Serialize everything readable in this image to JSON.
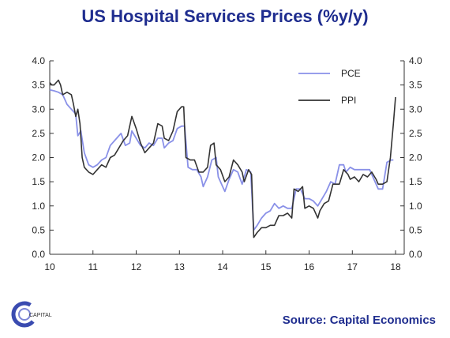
{
  "title": "US Hospital Services Prices (%y/y)",
  "source": "Source: Capital Economics",
  "logo": {
    "text": "CAPITAL"
  },
  "colors": {
    "title": "#1f2d8f",
    "pce": "#8a91e8",
    "ppi": "#333333"
  },
  "chart_data": {
    "type": "line",
    "title": "US Hospital Services Prices (%y/y)",
    "xlim": [
      10,
      18.2
    ],
    "ylim": [
      0,
      4
    ],
    "grid": false,
    "legend_placement": "top-right",
    "x_ticks": [
      "10",
      "11",
      "12",
      "13",
      "14",
      "15",
      "16",
      "17",
      "18"
    ],
    "y_ticks": [
      "0.0",
      "0.5",
      "1.0",
      "1.5",
      "2.0",
      "2.5",
      "3.0",
      "3.5",
      "4.0"
    ],
    "series": [
      {
        "name": "PCE",
        "points": [
          [
            10.0,
            3.4
          ],
          [
            10.1,
            3.38
          ],
          [
            10.2,
            3.35
          ],
          [
            10.3,
            3.3
          ],
          [
            10.4,
            3.1
          ],
          [
            10.5,
            3.0
          ],
          [
            10.6,
            2.9
          ],
          [
            10.65,
            2.45
          ],
          [
            10.72,
            2.55
          ],
          [
            10.8,
            2.1
          ],
          [
            10.9,
            1.85
          ],
          [
            11.0,
            1.8
          ],
          [
            11.1,
            1.85
          ],
          [
            11.2,
            1.95
          ],
          [
            11.3,
            2.0
          ],
          [
            11.4,
            2.25
          ],
          [
            11.5,
            2.35
          ],
          [
            11.6,
            2.45
          ],
          [
            11.65,
            2.5
          ],
          [
            11.75,
            2.25
          ],
          [
            11.85,
            2.3
          ],
          [
            11.9,
            2.55
          ],
          [
            12.0,
            2.4
          ],
          [
            12.1,
            2.25
          ],
          [
            12.2,
            2.2
          ],
          [
            12.3,
            2.3
          ],
          [
            12.4,
            2.25
          ],
          [
            12.5,
            2.4
          ],
          [
            12.6,
            2.4
          ],
          [
            12.65,
            2.2
          ],
          [
            12.75,
            2.3
          ],
          [
            12.85,
            2.35
          ],
          [
            12.95,
            2.6
          ],
          [
            13.05,
            2.65
          ],
          [
            13.12,
            2.65
          ],
          [
            13.2,
            1.8
          ],
          [
            13.3,
            1.75
          ],
          [
            13.4,
            1.75
          ],
          [
            13.5,
            1.6
          ],
          [
            13.55,
            1.4
          ],
          [
            13.65,
            1.6
          ],
          [
            13.75,
            1.95
          ],
          [
            13.85,
            2.0
          ],
          [
            13.9,
            1.6
          ],
          [
            14.0,
            1.4
          ],
          [
            14.05,
            1.3
          ],
          [
            14.15,
            1.55
          ],
          [
            14.25,
            1.75
          ],
          [
            14.35,
            1.7
          ],
          [
            14.45,
            1.45
          ],
          [
            14.55,
            1.75
          ],
          [
            14.65,
            1.7
          ],
          [
            14.72,
            0.5
          ],
          [
            14.8,
            0.6
          ],
          [
            14.9,
            0.75
          ],
          [
            15.0,
            0.85
          ],
          [
            15.1,
            0.9
          ],
          [
            15.2,
            1.05
          ],
          [
            15.3,
            0.95
          ],
          [
            15.4,
            1.0
          ],
          [
            15.5,
            0.95
          ],
          [
            15.6,
            0.95
          ],
          [
            15.7,
            1.35
          ],
          [
            15.8,
            1.35
          ],
          [
            15.9,
            1.15
          ],
          [
            16.0,
            1.15
          ],
          [
            16.1,
            1.1
          ],
          [
            16.2,
            1.0
          ],
          [
            16.3,
            1.15
          ],
          [
            16.4,
            1.3
          ],
          [
            16.5,
            1.5
          ],
          [
            16.6,
            1.45
          ],
          [
            16.7,
            1.85
          ],
          [
            16.8,
            1.85
          ],
          [
            16.85,
            1.7
          ],
          [
            16.95,
            1.8
          ],
          [
            17.05,
            1.75
          ],
          [
            17.1,
            1.75
          ],
          [
            17.2,
            1.75
          ],
          [
            17.3,
            1.75
          ],
          [
            17.4,
            1.75
          ],
          [
            17.5,
            1.55
          ],
          [
            17.6,
            1.35
          ],
          [
            17.7,
            1.35
          ],
          [
            17.8,
            1.9
          ],
          [
            17.9,
            1.95
          ],
          [
            17.95,
            1.95
          ]
        ]
      },
      {
        "name": "PPI",
        "points": [
          [
            10.0,
            3.55
          ],
          [
            10.05,
            3.5
          ],
          [
            10.1,
            3.5
          ],
          [
            10.15,
            3.55
          ],
          [
            10.2,
            3.6
          ],
          [
            10.25,
            3.5
          ],
          [
            10.3,
            3.3
          ],
          [
            10.4,
            3.35
          ],
          [
            10.5,
            3.3
          ],
          [
            10.55,
            3.1
          ],
          [
            10.6,
            2.85
          ],
          [
            10.65,
            3.0
          ],
          [
            10.7,
            2.7
          ],
          [
            10.75,
            2.0
          ],
          [
            10.8,
            1.8
          ],
          [
            10.9,
            1.7
          ],
          [
            11.0,
            1.65
          ],
          [
            11.1,
            1.75
          ],
          [
            11.2,
            1.85
          ],
          [
            11.3,
            1.8
          ],
          [
            11.4,
            2.0
          ],
          [
            11.5,
            2.05
          ],
          [
            11.6,
            2.2
          ],
          [
            11.7,
            2.35
          ],
          [
            11.8,
            2.45
          ],
          [
            11.9,
            2.85
          ],
          [
            12.0,
            2.6
          ],
          [
            12.1,
            2.3
          ],
          [
            12.2,
            2.1
          ],
          [
            12.3,
            2.2
          ],
          [
            12.4,
            2.3
          ],
          [
            12.5,
            2.7
          ],
          [
            12.6,
            2.65
          ],
          [
            12.65,
            2.4
          ],
          [
            12.75,
            2.35
          ],
          [
            12.85,
            2.55
          ],
          [
            12.95,
            2.95
          ],
          [
            13.05,
            3.05
          ],
          [
            13.1,
            3.05
          ],
          [
            13.15,
            2.0
          ],
          [
            13.25,
            1.95
          ],
          [
            13.35,
            1.95
          ],
          [
            13.45,
            1.7
          ],
          [
            13.55,
            1.7
          ],
          [
            13.65,
            1.8
          ],
          [
            13.72,
            2.25
          ],
          [
            13.8,
            2.3
          ],
          [
            13.85,
            1.85
          ],
          [
            13.95,
            1.75
          ],
          [
            14.05,
            1.5
          ],
          [
            14.15,
            1.6
          ],
          [
            14.25,
            1.95
          ],
          [
            14.35,
            1.85
          ],
          [
            14.45,
            1.7
          ],
          [
            14.5,
            1.5
          ],
          [
            14.6,
            1.75
          ],
          [
            14.67,
            1.65
          ],
          [
            14.72,
            0.35
          ],
          [
            14.8,
            0.45
          ],
          [
            14.9,
            0.55
          ],
          [
            15.0,
            0.55
          ],
          [
            15.1,
            0.6
          ],
          [
            15.2,
            0.6
          ],
          [
            15.3,
            0.8
          ],
          [
            15.4,
            0.8
          ],
          [
            15.5,
            0.85
          ],
          [
            15.6,
            0.75
          ],
          [
            15.65,
            1.35
          ],
          [
            15.75,
            1.3
          ],
          [
            15.85,
            1.4
          ],
          [
            15.9,
            0.95
          ],
          [
            16.0,
            1.0
          ],
          [
            16.1,
            0.95
          ],
          [
            16.2,
            0.75
          ],
          [
            16.25,
            0.9
          ],
          [
            16.35,
            1.05
          ],
          [
            16.45,
            1.1
          ],
          [
            16.55,
            1.45
          ],
          [
            16.65,
            1.45
          ],
          [
            16.7,
            1.45
          ],
          [
            16.8,
            1.75
          ],
          [
            16.9,
            1.65
          ],
          [
            16.95,
            1.55
          ],
          [
            17.05,
            1.6
          ],
          [
            17.15,
            1.5
          ],
          [
            17.25,
            1.65
          ],
          [
            17.35,
            1.6
          ],
          [
            17.45,
            1.7
          ],
          [
            17.55,
            1.55
          ],
          [
            17.6,
            1.45
          ],
          [
            17.7,
            1.45
          ],
          [
            17.8,
            1.5
          ],
          [
            17.88,
            2.0
          ],
          [
            17.95,
            2.7
          ],
          [
            18.0,
            3.25
          ]
        ]
      }
    ]
  }
}
